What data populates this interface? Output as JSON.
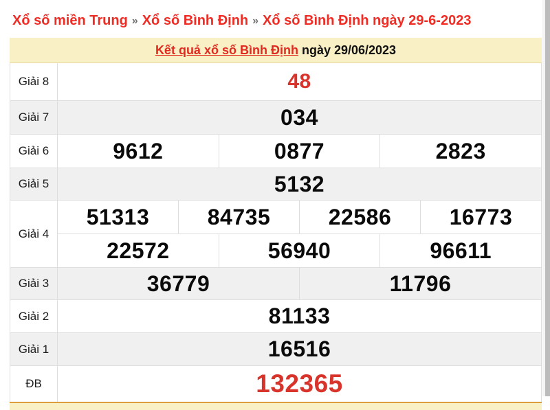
{
  "breadcrumb": {
    "separator": "»",
    "items": [
      "Xổ số miền Trung",
      "Xổ số Bình Định",
      "Xổ số Bình Định ngày 29-6-2023"
    ]
  },
  "header": {
    "title_link": "Kết quả xổ số Bình Định",
    "title_suffix": " ngày 29/06/2023"
  },
  "table": {
    "rows": [
      {
        "label": "Giải 8",
        "highlight": true,
        "groups": [
          [
            "48"
          ]
        ]
      },
      {
        "label": "Giải 7",
        "highlight": false,
        "groups": [
          [
            "034"
          ]
        ]
      },
      {
        "label": "Giải 6",
        "highlight": false,
        "groups": [
          [
            "9612",
            "0877",
            "2823"
          ]
        ]
      },
      {
        "label": "Giải 5",
        "highlight": false,
        "groups": [
          [
            "5132"
          ]
        ]
      },
      {
        "label": "Giải 4",
        "highlight": false,
        "groups": [
          [
            "51313",
            "84735",
            "22586",
            "16773"
          ],
          [
            "22572",
            "56940",
            "96611"
          ]
        ]
      },
      {
        "label": "Giải 3",
        "highlight": false,
        "groups": [
          [
            "36779",
            "11796"
          ]
        ]
      },
      {
        "label": "Giải 2",
        "highlight": false,
        "groups": [
          [
            "81133"
          ]
        ]
      },
      {
        "label": "Giải 1",
        "highlight": false,
        "groups": [
          [
            "16516"
          ]
        ]
      },
      {
        "label": "ĐB",
        "highlight": true,
        "groups": [
          [
            "132365"
          ]
        ]
      }
    ]
  },
  "colors": {
    "breadcrumb_red": "#ee2c24",
    "title_red": "#e02b20",
    "number_red": "#d9342b",
    "header_bg": "#faf0c6",
    "accent_orange": "#dd9f3c",
    "alt_row_bg": "#f0f0f0",
    "border": "#dedede"
  }
}
